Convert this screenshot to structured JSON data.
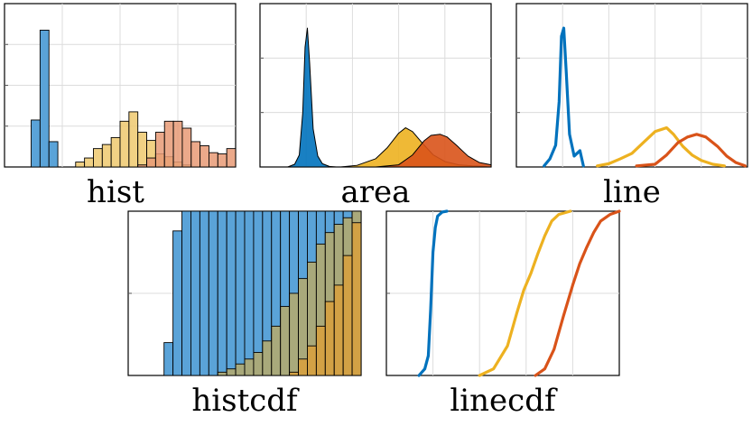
{
  "colors": {
    "blue": "#0072BD",
    "yellow": "#EDB120",
    "orange": "#D95319"
  },
  "chart_data": [
    {
      "type": "bar",
      "title": "hist",
      "grid": true,
      "xlim": [
        0,
        26
      ],
      "ylim": [
        0,
        4
      ],
      "series": [
        {
          "color": "#5AA3D8",
          "bins": [
            [
              3,
              1.15
            ],
            [
              4,
              3.35
            ],
            [
              5,
              0.62
            ]
          ]
        },
        {
          "color": "#EEC96E",
          "bins": [
            [
              8,
              0.12
            ],
            [
              9,
              0.22
            ],
            [
              10,
              0.45
            ],
            [
              11,
              0.55
            ],
            [
              12,
              0.72
            ],
            [
              13,
              1.12
            ],
            [
              14,
              1.35
            ],
            [
              15,
              0.85
            ],
            [
              16,
              0.65
            ],
            [
              17,
              0.32
            ],
            [
              18,
              0.25
            ],
            [
              19,
              0.12
            ],
            [
              20,
              0.05
            ]
          ]
        },
        {
          "color": "#E89A75",
          "bins": [
            [
              15,
              0.05
            ],
            [
              16,
              0.22
            ],
            [
              17,
              0.85
            ],
            [
              18,
              1.12
            ],
            [
              19,
              1.12
            ],
            [
              20,
              0.95
            ],
            [
              21,
              0.62
            ],
            [
              22,
              0.52
            ],
            [
              23,
              0.35
            ],
            [
              24,
              0.32
            ],
            [
              25,
              0.45
            ]
          ]
        }
      ]
    },
    {
      "type": "area",
      "title": "area",
      "grid": true,
      "xlim": [
        0,
        10
      ],
      "ylim": [
        0,
        3
      ],
      "series": [
        {
          "color": "#0072BD",
          "x": [
            1.2,
            1.5,
            1.7,
            1.85,
            1.95,
            2.05,
            2.15,
            2.3,
            2.5,
            2.7,
            3.0,
            3.3
          ],
          "y": [
            0,
            0.05,
            0.22,
            1.0,
            2.2,
            2.55,
            1.9,
            0.7,
            0.2,
            0.06,
            0.01,
            0
          ]
        },
        {
          "color": "#EDB120",
          "x": [
            3.5,
            4.2,
            5.0,
            5.5,
            6.0,
            6.3,
            6.6,
            7.0,
            7.5,
            8.0,
            8.6,
            9.2,
            9.8
          ],
          "y": [
            0,
            0.03,
            0.15,
            0.35,
            0.62,
            0.72,
            0.65,
            0.45,
            0.22,
            0.1,
            0.04,
            0.02,
            0.01
          ]
        },
        {
          "color": "#D95319",
          "x": [
            5.0,
            6.0,
            6.6,
            7.1,
            7.4,
            7.8,
            8.1,
            8.5,
            9.0,
            9.5,
            10.0
          ],
          "y": [
            0,
            0.04,
            0.22,
            0.48,
            0.58,
            0.6,
            0.55,
            0.4,
            0.2,
            0.08,
            0.04
          ]
        }
      ]
    },
    {
      "type": "line",
      "title": "line",
      "grid": true,
      "xlim": [
        0,
        10
      ],
      "ylim": [
        0,
        3
      ],
      "series": [
        {
          "color": "#0072BD",
          "x": [
            1.2,
            1.45,
            1.7,
            1.85,
            1.95,
            2.05,
            2.15,
            2.3,
            2.5,
            2.75,
            2.9
          ],
          "y": [
            0.02,
            0.15,
            0.4,
            1.2,
            2.4,
            2.55,
            1.8,
            0.6,
            0.2,
            0.3,
            0.02
          ]
        },
        {
          "color": "#EDB120",
          "x": [
            3.5,
            4.0,
            4.5,
            5.0,
            5.5,
            6.0,
            6.5,
            6.8,
            7.2,
            7.6,
            8.0,
            8.5,
            9.0
          ],
          "y": [
            0.02,
            0.06,
            0.15,
            0.25,
            0.45,
            0.65,
            0.72,
            0.6,
            0.38,
            0.22,
            0.12,
            0.05,
            0.02
          ]
        },
        {
          "color": "#D95319",
          "x": [
            5.2,
            6.0,
            6.5,
            7.0,
            7.4,
            7.8,
            8.2,
            8.7,
            9.1,
            9.5,
            9.9
          ],
          "y": [
            0.02,
            0.05,
            0.22,
            0.45,
            0.55,
            0.6,
            0.55,
            0.38,
            0.2,
            0.08,
            0.02
          ]
        }
      ]
    },
    {
      "type": "bar",
      "title": "histcdf",
      "grid": true,
      "xlim": [
        0,
        26
      ],
      "ylim": [
        0,
        1
      ],
      "series": [
        {
          "color": "#5AA3D8",
          "bins": [
            [
              4,
              0.2
            ],
            [
              5,
              0.88
            ],
            [
              6,
              1
            ],
            [
              7,
              1
            ],
            [
              8,
              1
            ],
            [
              9,
              1
            ],
            [
              10,
              1
            ],
            [
              11,
              1
            ],
            [
              12,
              1
            ],
            [
              13,
              1
            ],
            [
              14,
              1
            ],
            [
              15,
              1
            ],
            [
              16,
              1
            ],
            [
              17,
              1
            ],
            [
              18,
              1
            ],
            [
              19,
              1
            ],
            [
              20,
              1
            ],
            [
              21,
              1
            ],
            [
              22,
              1
            ],
            [
              23,
              1
            ],
            [
              24,
              1
            ],
            [
              25,
              1
            ]
          ]
        },
        {
          "color": "#B7AA6B",
          "bins": [
            [
              10,
              0.02
            ],
            [
              11,
              0.04
            ],
            [
              12,
              0.07
            ],
            [
              13,
              0.1
            ],
            [
              14,
              0.14
            ],
            [
              15,
              0.21
            ],
            [
              16,
              0.3
            ],
            [
              17,
              0.42
            ],
            [
              18,
              0.5
            ],
            [
              19,
              0.59
            ],
            [
              20,
              0.69
            ],
            [
              21,
              0.8
            ],
            [
              22,
              0.87
            ],
            [
              23,
              0.92
            ],
            [
              24,
              0.96
            ],
            [
              25,
              1
            ]
          ]
        },
        {
          "color": "#D9A03C",
          "bins": [
            [
              18,
              0.02
            ],
            [
              19,
              0.1
            ],
            [
              20,
              0.18
            ],
            [
              21,
              0.3
            ],
            [
              22,
              0.45
            ],
            [
              23,
              0.55
            ],
            [
              24,
              0.73
            ],
            [
              25,
              0.93
            ]
          ]
        }
      ]
    },
    {
      "type": "line",
      "title": "linecdf",
      "grid": true,
      "xlim": [
        0,
        10
      ],
      "ylim": [
        0,
        1
      ],
      "series": [
        {
          "color": "#0072BD",
          "x": [
            1.4,
            1.65,
            1.8,
            1.9,
            2.0,
            2.1,
            2.2,
            2.4,
            2.6
          ],
          "y": [
            0,
            0.04,
            0.12,
            0.4,
            0.75,
            0.9,
            0.97,
            0.995,
            1
          ]
        },
        {
          "color": "#EDB120",
          "x": [
            4.0,
            4.6,
            5.2,
            5.6,
            5.9,
            6.2,
            6.5,
            6.8,
            7.1,
            7.4,
            7.9
          ],
          "y": [
            0,
            0.04,
            0.18,
            0.38,
            0.52,
            0.62,
            0.74,
            0.85,
            0.94,
            0.98,
            1
          ]
        },
        {
          "color": "#D95319",
          "x": [
            6.4,
            6.8,
            7.2,
            7.6,
            8.0,
            8.3,
            8.6,
            8.9,
            9.2,
            9.6,
            10.0
          ],
          "y": [
            0,
            0.04,
            0.16,
            0.36,
            0.55,
            0.68,
            0.78,
            0.87,
            0.94,
            0.98,
            1
          ]
        }
      ]
    }
  ]
}
